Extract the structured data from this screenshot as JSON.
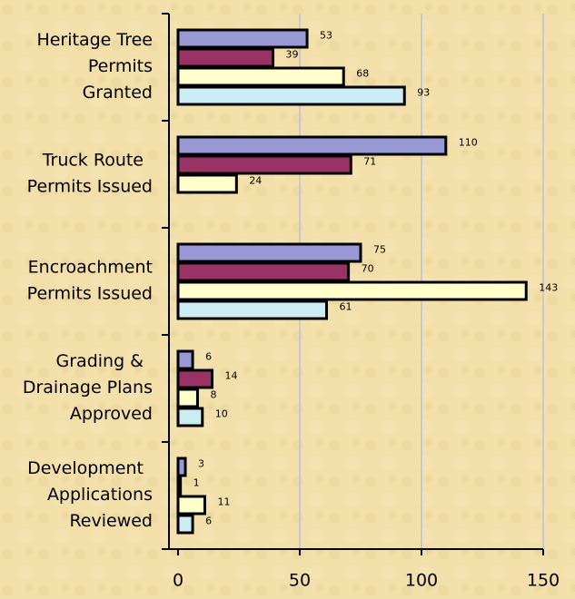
{
  "chart_data": {
    "type": "bar",
    "orientation": "horizontal",
    "categories": [
      "Heritage Tree Permits Granted",
      "Truck Route Permits Issued",
      "Encroachment Permits Issued",
      "Grading & Drainage Plans Approved",
      "Development Applications Reviewed"
    ],
    "series": [
      {
        "color": "#9999d6",
        "values": [
          53,
          110,
          75,
          6,
          3
        ]
      },
      {
        "color": "#993366",
        "values": [
          39,
          71,
          70,
          14,
          1
        ]
      },
      {
        "color": "#ffffcc",
        "values": [
          68,
          24,
          143,
          8,
          11
        ]
      },
      {
        "color": "#ccecf4",
        "values": [
          93,
          null,
          61,
          10,
          6
        ]
      }
    ],
    "xlim": [
      0,
      150
    ],
    "xticks": [
      0,
      50,
      100,
      150
    ],
    "grid": true,
    "data_labels": true
  }
}
